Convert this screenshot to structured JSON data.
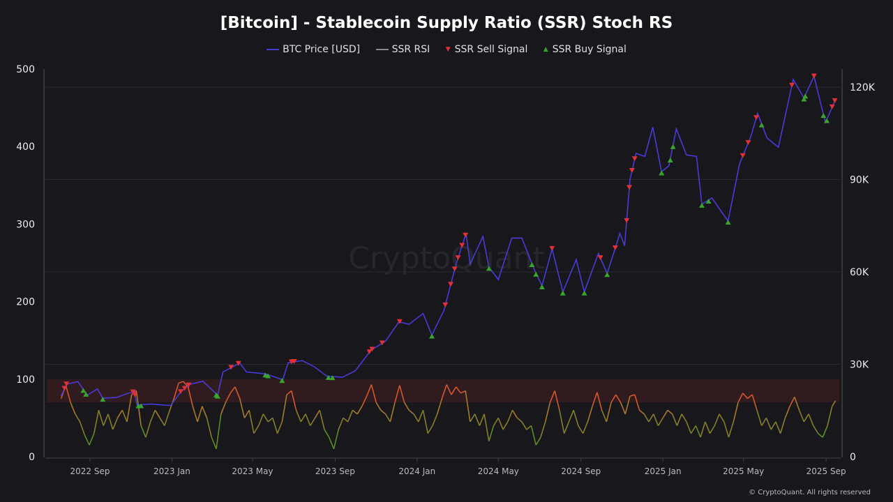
{
  "chart_data": {
    "type": "line",
    "title": "[Bitcoin] - Stablecoin Supply Ratio (SSR) Stoch RS",
    "legend": [
      {
        "name": "BTC Price [USD]",
        "color": "#4a3ad6"
      },
      {
        "name": "SSR RSI",
        "color": "#8a8a8a"
      },
      {
        "name": "SSR Sell Signal",
        "color": "#e0303a"
      },
      {
        "name": "SSR Buy Signal",
        "color": "#3aa52e"
      }
    ],
    "legend_placement": "top",
    "left_axis": {
      "range": [
        0,
        500
      ],
      "ticks": [
        "0",
        "100",
        "200",
        "300",
        "400",
        "500"
      ]
    },
    "right_axis": {
      "range": [
        0,
        120000
      ],
      "ticks": [
        "0",
        "30K",
        "60K",
        "90K",
        "120K"
      ]
    },
    "x_ticks": [
      {
        "label": "2022 Sep",
        "date": "2022-09-01"
      },
      {
        "label": "2023 Jan",
        "date": "2023-01-01"
      },
      {
        "label": "2023 May",
        "date": "2023-05-01"
      },
      {
        "label": "2023 Sep",
        "date": "2023-09-01"
      },
      {
        "label": "2024 Jan",
        "date": "2024-01-01"
      },
      {
        "label": "2024 May",
        "date": "2024-05-01"
      },
      {
        "label": "2024 Sep",
        "date": "2024-09-01"
      },
      {
        "label": "2025 Jan",
        "date": "2025-01-01"
      },
      {
        "label": "2025 May",
        "date": "2025-05-01"
      },
      {
        "label": "2025 Sep",
        "date": "2025-09-01"
      }
    ],
    "rsi_band": [
      70,
      100
    ],
    "btc_price": [
      [
        "2022-07-20",
        19700
      ],
      [
        "2022-07-28",
        23500
      ],
      [
        "2022-08-14",
        24400
      ],
      [
        "2022-08-28",
        20000
      ],
      [
        "2022-09-12",
        22000
      ],
      [
        "2022-09-20",
        19000
      ],
      [
        "2022-10-10",
        19200
      ],
      [
        "2022-10-28",
        20600
      ],
      [
        "2022-11-06",
        21000
      ],
      [
        "2022-11-10",
        16800
      ],
      [
        "2022-12-01",
        17100
      ],
      [
        "2022-12-30",
        16600
      ],
      [
        "2023-01-14",
        21000
      ],
      [
        "2023-01-28",
        23500
      ],
      [
        "2023-02-16",
        24500
      ],
      [
        "2023-03-10",
        20000
      ],
      [
        "2023-03-18",
        27500
      ],
      [
        "2023-04-12",
        30400
      ],
      [
        "2023-04-22",
        27500
      ],
      [
        "2023-05-20",
        26900
      ],
      [
        "2023-06-15",
        25000
      ],
      [
        "2023-06-23",
        30500
      ],
      [
        "2023-07-14",
        31200
      ],
      [
        "2023-08-01",
        29200
      ],
      [
        "2023-08-20",
        26100
      ],
      [
        "2023-09-12",
        25800
      ],
      [
        "2023-10-01",
        27900
      ],
      [
        "2023-10-24",
        34500
      ],
      [
        "2023-11-15",
        37500
      ],
      [
        "2023-12-05",
        43800
      ],
      [
        "2023-12-20",
        43000
      ],
      [
        "2024-01-10",
        46500
      ],
      [
        "2024-01-23",
        39500
      ],
      [
        "2024-02-10",
        47500
      ],
      [
        "2024-02-28",
        62500
      ],
      [
        "2024-03-14",
        72500
      ],
      [
        "2024-03-20",
        62500
      ],
      [
        "2024-04-08",
        71500
      ],
      [
        "2024-04-17",
        61500
      ],
      [
        "2024-05-01",
        57500
      ],
      [
        "2024-05-21",
        71000
      ],
      [
        "2024-06-05",
        71000
      ],
      [
        "2024-06-24",
        60500
      ],
      [
        "2024-07-05",
        55500
      ],
      [
        "2024-07-20",
        67500
      ],
      [
        "2024-08-05",
        53500
      ],
      [
        "2024-08-25",
        64000
      ],
      [
        "2024-09-06",
        53500
      ],
      [
        "2024-09-27",
        66000
      ],
      [
        "2024-10-10",
        59500
      ],
      [
        "2024-10-29",
        72500
      ],
      [
        "2024-11-05",
        68500
      ],
      [
        "2024-11-13",
        90000
      ],
      [
        "2024-11-22",
        98500
      ],
      [
        "2024-12-05",
        97500
      ],
      [
        "2024-12-17",
        107000
      ],
      [
        "2024-12-30",
        92500
      ],
      [
        "2025-01-10",
        94500
      ],
      [
        "2025-01-21",
        106500
      ],
      [
        "2025-02-05",
        98000
      ],
      [
        "2025-02-20",
        97500
      ],
      [
        "2025-02-28",
        82000
      ],
      [
        "2025-03-15",
        84000
      ],
      [
        "2025-04-08",
        76500
      ],
      [
        "2025-04-25",
        95000
      ],
      [
        "2025-05-12",
        104000
      ],
      [
        "2025-05-22",
        111500
      ],
      [
        "2025-06-05",
        103500
      ],
      [
        "2025-06-22",
        100500
      ],
      [
        "2025-07-14",
        122500
      ],
      [
        "2025-07-30",
        116500
      ],
      [
        "2025-08-14",
        123500
      ],
      [
        "2025-08-31",
        108500
      ],
      [
        "2025-09-15",
        116000
      ]
    ],
    "ssr_rsi": [
      [
        "2022-07-20",
        75
      ],
      [
        "2022-07-27",
        92
      ],
      [
        "2022-08-03",
        70
      ],
      [
        "2022-08-10",
        55
      ],
      [
        "2022-08-17",
        45
      ],
      [
        "2022-08-24",
        28
      ],
      [
        "2022-08-31",
        15
      ],
      [
        "2022-09-07",
        30
      ],
      [
        "2022-09-14",
        60
      ],
      [
        "2022-09-21",
        40
      ],
      [
        "2022-09-28",
        55
      ],
      [
        "2022-10-05",
        35
      ],
      [
        "2022-10-12",
        50
      ],
      [
        "2022-10-19",
        60
      ],
      [
        "2022-10-26",
        45
      ],
      [
        "2022-11-02",
        80
      ],
      [
        "2022-11-09",
        85
      ],
      [
        "2022-11-16",
        40
      ],
      [
        "2022-11-23",
        25
      ],
      [
        "2022-11-30",
        45
      ],
      [
        "2022-12-07",
        60
      ],
      [
        "2022-12-14",
        50
      ],
      [
        "2022-12-21",
        40
      ],
      [
        "2022-12-28",
        58
      ],
      [
        "2023-01-04",
        75
      ],
      [
        "2023-01-11",
        95
      ],
      [
        "2023-01-18",
        97
      ],
      [
        "2023-01-25",
        90
      ],
      [
        "2023-02-01",
        65
      ],
      [
        "2023-02-08",
        45
      ],
      [
        "2023-02-15",
        65
      ],
      [
        "2023-02-22",
        50
      ],
      [
        "2023-03-01",
        25
      ],
      [
        "2023-03-08",
        10
      ],
      [
        "2023-03-15",
        55
      ],
      [
        "2023-03-22",
        70
      ],
      [
        "2023-03-29",
        82
      ],
      [
        "2023-04-05",
        90
      ],
      [
        "2023-04-12",
        75
      ],
      [
        "2023-04-19",
        50
      ],
      [
        "2023-04-26",
        60
      ],
      [
        "2023-05-03",
        30
      ],
      [
        "2023-05-10",
        40
      ],
      [
        "2023-05-17",
        55
      ],
      [
        "2023-05-24",
        45
      ],
      [
        "2023-05-31",
        50
      ],
      [
        "2023-06-07",
        30
      ],
      [
        "2023-06-14",
        45
      ],
      [
        "2023-06-21",
        80
      ],
      [
        "2023-06-28",
        85
      ],
      [
        "2023-07-05",
        60
      ],
      [
        "2023-07-12",
        45
      ],
      [
        "2023-07-19",
        55
      ],
      [
        "2023-07-26",
        40
      ],
      [
        "2023-08-02",
        50
      ],
      [
        "2023-08-09",
        60
      ],
      [
        "2023-08-16",
        35
      ],
      [
        "2023-08-23",
        25
      ],
      [
        "2023-08-30",
        10
      ],
      [
        "2023-09-06",
        35
      ],
      [
        "2023-09-13",
        50
      ],
      [
        "2023-09-20",
        45
      ],
      [
        "2023-09-27",
        60
      ],
      [
        "2023-10-04",
        55
      ],
      [
        "2023-10-11",
        65
      ],
      [
        "2023-10-18",
        78
      ],
      [
        "2023-10-25",
        93
      ],
      [
        "2023-11-01",
        70
      ],
      [
        "2023-11-08",
        60
      ],
      [
        "2023-11-15",
        55
      ],
      [
        "2023-11-22",
        45
      ],
      [
        "2023-11-29",
        70
      ],
      [
        "2023-12-06",
        92
      ],
      [
        "2023-12-13",
        70
      ],
      [
        "2023-12-20",
        60
      ],
      [
        "2023-12-27",
        55
      ],
      [
        "2024-01-03",
        45
      ],
      [
        "2024-01-10",
        60
      ],
      [
        "2024-01-17",
        30
      ],
      [
        "2024-01-24",
        40
      ],
      [
        "2024-01-31",
        55
      ],
      [
        "2024-02-07",
        75
      ],
      [
        "2024-02-14",
        93
      ],
      [
        "2024-02-21",
        80
      ],
      [
        "2024-02-28",
        90
      ],
      [
        "2024-03-06",
        82
      ],
      [
        "2024-03-13",
        85
      ],
      [
        "2024-03-20",
        45
      ],
      [
        "2024-03-27",
        55
      ],
      [
        "2024-04-03",
        40
      ],
      [
        "2024-04-10",
        55
      ],
      [
        "2024-04-17",
        20
      ],
      [
        "2024-04-24",
        40
      ],
      [
        "2024-05-01",
        50
      ],
      [
        "2024-05-08",
        35
      ],
      [
        "2024-05-15",
        45
      ],
      [
        "2024-05-22",
        60
      ],
      [
        "2024-05-29",
        50
      ],
      [
        "2024-06-05",
        45
      ],
      [
        "2024-06-12",
        35
      ],
      [
        "2024-06-19",
        40
      ],
      [
        "2024-06-26",
        15
      ],
      [
        "2024-07-03",
        25
      ],
      [
        "2024-07-10",
        45
      ],
      [
        "2024-07-17",
        70
      ],
      [
        "2024-07-24",
        85
      ],
      [
        "2024-07-31",
        60
      ],
      [
        "2024-08-07",
        30
      ],
      [
        "2024-08-14",
        45
      ],
      [
        "2024-08-21",
        60
      ],
      [
        "2024-08-28",
        40
      ],
      [
        "2024-09-04",
        30
      ],
      [
        "2024-09-11",
        45
      ],
      [
        "2024-09-18",
        65
      ],
      [
        "2024-09-25",
        83
      ],
      [
        "2024-10-02",
        60
      ],
      [
        "2024-10-09",
        45
      ],
      [
        "2024-10-16",
        70
      ],
      [
        "2024-10-23",
        80
      ],
      [
        "2024-10-30",
        70
      ],
      [
        "2024-11-06",
        55
      ],
      [
        "2024-11-13",
        78
      ],
      [
        "2024-11-20",
        80
      ],
      [
        "2024-11-27",
        60
      ],
      [
        "2024-12-04",
        55
      ],
      [
        "2024-12-11",
        45
      ],
      [
        "2024-12-18",
        55
      ],
      [
        "2024-12-25",
        40
      ],
      [
        "2025-01-01",
        50
      ],
      [
        "2025-01-08",
        60
      ],
      [
        "2025-01-15",
        55
      ],
      [
        "2025-01-22",
        40
      ],
      [
        "2025-01-29",
        55
      ],
      [
        "2025-02-05",
        45
      ],
      [
        "2025-02-12",
        30
      ],
      [
        "2025-02-19",
        40
      ],
      [
        "2025-02-26",
        25
      ],
      [
        "2025-03-05",
        45
      ],
      [
        "2025-03-12",
        30
      ],
      [
        "2025-03-19",
        40
      ],
      [
        "2025-03-26",
        55
      ],
      [
        "2025-04-02",
        45
      ],
      [
        "2025-04-09",
        25
      ],
      [
        "2025-04-16",
        45
      ],
      [
        "2025-04-23",
        70
      ],
      [
        "2025-04-30",
        82
      ],
      [
        "2025-05-07",
        75
      ],
      [
        "2025-05-14",
        80
      ],
      [
        "2025-05-21",
        60
      ],
      [
        "2025-05-28",
        40
      ],
      [
        "2025-06-04",
        50
      ],
      [
        "2025-06-11",
        35
      ],
      [
        "2025-06-18",
        45
      ],
      [
        "2025-06-25",
        30
      ],
      [
        "2025-07-02",
        50
      ],
      [
        "2025-07-09",
        65
      ],
      [
        "2025-07-16",
        77
      ],
      [
        "2025-07-23",
        60
      ],
      [
        "2025-07-30",
        45
      ],
      [
        "2025-08-06",
        55
      ],
      [
        "2025-08-13",
        40
      ],
      [
        "2025-08-20",
        30
      ],
      [
        "2025-08-27",
        25
      ],
      [
        "2025-09-03",
        40
      ],
      [
        "2025-09-10",
        65
      ],
      [
        "2025-09-15",
        72
      ]
    ],
    "sell_signals": [
      "2022-07-25",
      "2022-07-28",
      "2022-11-04",
      "2022-11-07",
      "2023-01-14",
      "2023-01-20",
      "2023-01-26",
      "2023-03-30",
      "2023-04-10",
      "2023-06-28",
      "2023-07-02",
      "2023-10-22",
      "2023-10-26",
      "2023-11-10",
      "2023-12-06",
      "2024-02-12",
      "2024-02-20",
      "2024-02-26",
      "2024-03-02",
      "2024-03-08",
      "2024-03-13",
      "2024-07-20",
      "2024-09-30",
      "2024-10-22",
      "2024-11-08",
      "2024-11-12",
      "2024-11-16",
      "2024-11-20",
      "2025-04-30",
      "2025-05-08",
      "2025-05-20",
      "2025-07-12",
      "2025-08-14",
      "2025-09-10",
      "2025-09-14"
    ],
    "buy_signals": [
      "2022-08-22",
      "2022-08-26",
      "2022-09-20",
      "2022-11-12",
      "2022-11-16",
      "2023-03-08",
      "2023-03-10",
      "2023-05-20",
      "2023-05-24",
      "2023-06-14",
      "2023-08-22",
      "2023-08-28",
      "2024-01-23",
      "2024-04-17",
      "2024-06-20",
      "2024-06-26",
      "2024-07-05",
      "2024-08-05",
      "2024-09-06",
      "2024-10-10",
      "2024-12-30",
      "2025-01-12",
      "2025-01-16",
      "2025-02-28",
      "2025-03-10",
      "2025-04-08",
      "2025-05-28",
      "2025-07-30",
      "2025-08-01",
      "2025-08-28",
      "2025-09-02"
    ],
    "watermark": "CryptoQuant"
  },
  "footer": "© CryptoQuant. All rights reserved"
}
